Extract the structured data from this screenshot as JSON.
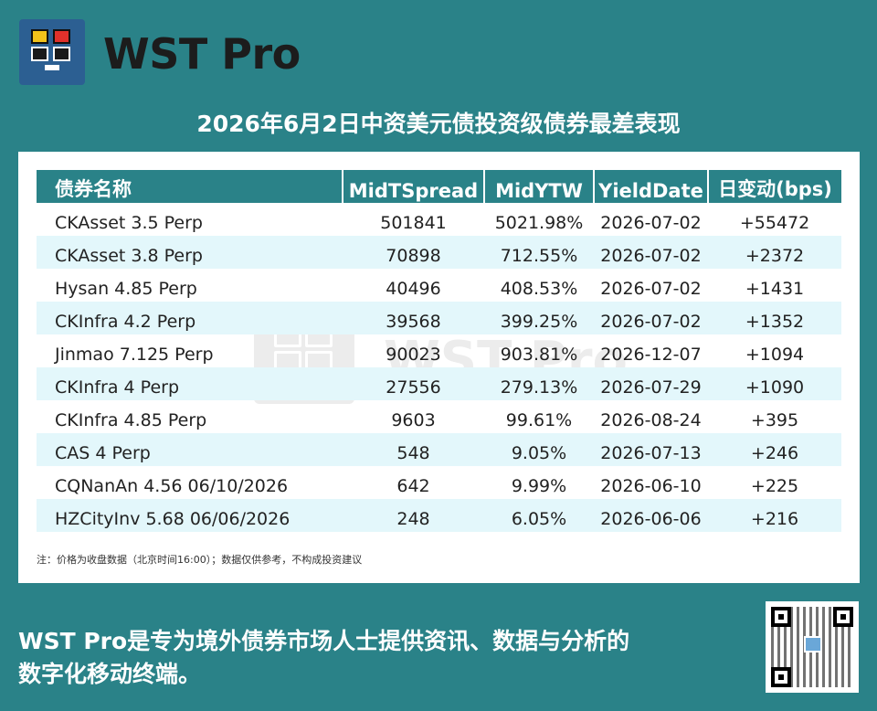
{
  "brand": {
    "name": "WST Pro"
  },
  "headline": "2026年6月2日中资美元债投资级债券最差表现",
  "table": {
    "headers": [
      "债券名称",
      "MidTSpread",
      "MidYTW",
      "YieldDate",
      "日变动(bps)"
    ],
    "rows": [
      [
        "CKAsset 3.5 Perp",
        "501841",
        "5021.98%",
        "2026-07-02",
        "+55472"
      ],
      [
        "CKAsset 3.8 Perp",
        "70898",
        "712.55%",
        "2026-07-02",
        "+2372"
      ],
      [
        "Hysan 4.85 Perp",
        "40496",
        "408.53%",
        "2026-07-02",
        "+1431"
      ],
      [
        "CKInfra 4.2 Perp",
        "39568",
        "399.25%",
        "2026-07-02",
        "+1352"
      ],
      [
        "Jinmao 7.125 Perp",
        "90023",
        "903.81%",
        "2026-12-07",
        "+1094"
      ],
      [
        "CKInfra 4 Perp",
        "27556",
        "279.13%",
        "2026-07-29",
        "+1090"
      ],
      [
        "CKInfra 4.85 Perp",
        "9603",
        "99.61%",
        "2026-08-24",
        "+395"
      ],
      [
        "CAS 4 Perp",
        "548",
        "9.05%",
        "2026-07-13",
        "+246"
      ],
      [
        "CQNanAn 4.56 06/10/2026",
        "642",
        "9.99%",
        "2026-06-10",
        "+225"
      ],
      [
        "HZCityInv 5.68 06/06/2026",
        "248",
        "6.05%",
        "2026-06-06",
        "+216"
      ]
    ]
  },
  "watermark": "WST Pro",
  "note": "注：价格为收盘数据（北京时间16:00）；数据仅供参考，不构成投资建议",
  "footer": {
    "line1": "WST Pro是专为境外债券市场人士提供资讯、数据与分析的",
    "line2": "数字化移动终端。"
  },
  "colors": {
    "background": "#2a8288",
    "header": "#2a8288",
    "row_alt": "#e3f7fb"
  }
}
